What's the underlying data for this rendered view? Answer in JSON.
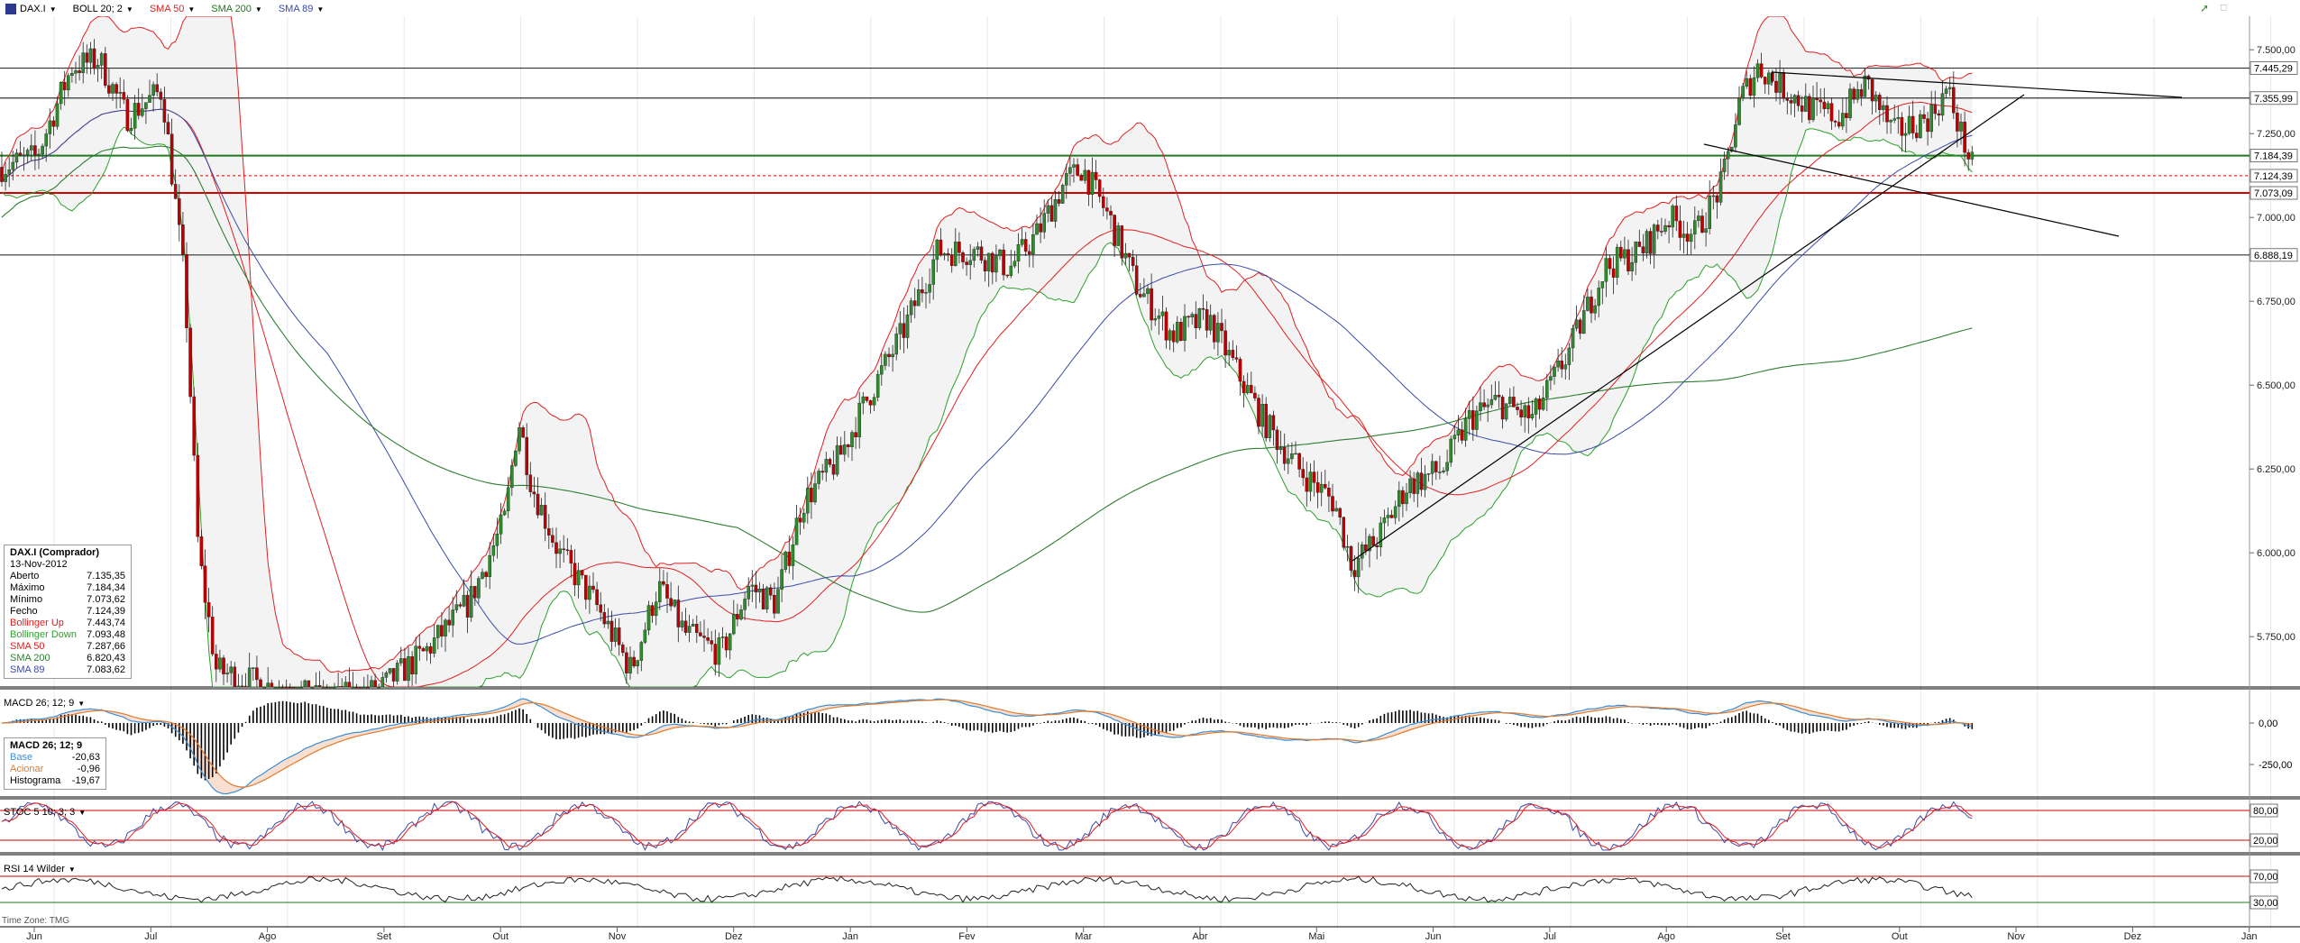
{
  "toolbar": {
    "symbol": "DAX.I",
    "indicators": [
      {
        "label": "BOLL 20; 2",
        "color": "#000000"
      },
      {
        "label": "SMA 50",
        "color": "#e02020"
      },
      {
        "label": "SMA 200",
        "color": "#1f7a1f"
      },
      {
        "label": "SMA 89",
        "color": "#3a4aa8"
      }
    ]
  },
  "colors": {
    "sma50": "#e02020",
    "sma200": "#2e7d32",
    "sma89": "#3a4aa8",
    "bollUp": "#e02020",
    "bollDown": "#2ca02c",
    "bollFill": "#f3f3f3",
    "bullish": "#2e8b2e",
    "bearish": "#c00000",
    "macdBase": "#3a8fd6",
    "macdSignal": "#e07b30"
  },
  "chart_data": [
    {
      "type": "candlestick",
      "title": "DAX.I",
      "y_ticks": [
        "7.500,00",
        "7.250,00",
        "7.000,00",
        "6.750,00",
        "6.500,00",
        "6.250,00",
        "6.000,00",
        "5.750,00"
      ],
      "ylim": [
        5600,
        7600
      ],
      "x_months": [
        "Jun",
        "Jul",
        "Ago",
        "Set",
        "Out",
        "Nov",
        "Dez",
        "Jan",
        "Fev",
        "Mar",
        "Abr",
        "Mai",
        "Jun",
        "Jul",
        "Ago",
        "Set",
        "Out",
        "Nov",
        "Dez",
        "Jan"
      ],
      "price_labels": [
        "7.445,29",
        "7.355,99",
        "7.184,39",
        "7.124,39",
        "7.073,09",
        "6.888,19"
      ],
      "horizontal_levels": [
        7445.29,
        7355.99,
        7184.39,
        7073.09,
        6888.19
      ],
      "info": {
        "title": "DAX.I (Comprador)",
        "date": "13-Nov-2012",
        "rows": [
          {
            "label": "Aberto",
            "value": "7.135,35",
            "color": "#000000"
          },
          {
            "label": "Máximo",
            "value": "7.184,34",
            "color": "#000000"
          },
          {
            "label": "Mínimo",
            "value": "7.073,62",
            "color": "#000000"
          },
          {
            "label": "Fecho",
            "value": "7.124,39",
            "color": "#000000"
          },
          {
            "label": "Bollinger Up",
            "value": "7.443,74",
            "color": "#e02020"
          },
          {
            "label": "Bollinger Down",
            "value": "7.093,48",
            "color": "#2ca02c"
          },
          {
            "label": "SMA 50",
            "value": "7.287,66",
            "color": "#e02020"
          },
          {
            "label": "SMA 200",
            "value": "6.820,43",
            "color": "#2e7d32"
          },
          {
            "label": "SMA 89",
            "value": "7.083,62",
            "color": "#3a4aa8"
          }
        ]
      }
    },
    {
      "type": "macd",
      "label": "MACD 26; 12; 9",
      "y_ticks": [
        "0,00",
        "-250,00"
      ],
      "info": {
        "title": "MACD 26; 12; 9",
        "rows": [
          {
            "label": "Base",
            "value": "-20,63",
            "color": "#3a8fd6"
          },
          {
            "label": "Acionar",
            "value": "-0,96",
            "color": "#e07b30"
          },
          {
            "label": "Histograma",
            "value": "-19,67",
            "color": "#000000"
          }
        ]
      }
    },
    {
      "type": "stochastic",
      "label": "STOC 5 10; 3; 3",
      "y_ticks": [
        "80,00",
        "20,00"
      ]
    },
    {
      "type": "rsi",
      "label": "RSI 14 Wilder",
      "y_ticks": [
        "70,00",
        "30,00"
      ]
    }
  ],
  "footer": {
    "timezone": "Time Zone: TMG"
  }
}
